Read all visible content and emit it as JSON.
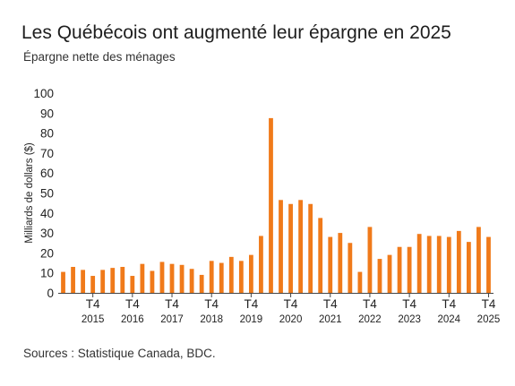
{
  "title": "Les Québécois ont augmenté leur épargne en 2025",
  "subtitle": "Épargne nette des ménages",
  "source": "Sources : Statistique Canada, BDC.",
  "colors": {
    "bar": "#f07a1a",
    "axis": "#444444",
    "text": "#222222"
  },
  "chart_data": {
    "type": "bar",
    "title": "Les Québécois ont augmenté leur épargne en 2025",
    "subtitle": "Épargne nette des ménages",
    "xlabel": "",
    "ylabel": "Milliards de dollars ($)",
    "ylim": [
      0,
      100
    ],
    "yticks": [
      0,
      10,
      20,
      30,
      40,
      50,
      60,
      70,
      80,
      90,
      100
    ],
    "grid": false,
    "quarter_tick_label": "T4",
    "years": [
      "2015",
      "2016",
      "2017",
      "2018",
      "2019",
      "2020",
      "2021",
      "2022",
      "2023",
      "2024",
      "2025"
    ],
    "values": [
      10.5,
      13,
      11.5,
      8.5,
      11.5,
      12.5,
      13,
      8.5,
      14.5,
      11,
      15.5,
      14.5,
      14,
      12,
      9,
      16,
      15,
      18,
      16,
      19,
      28.5,
      87.5,
      46.5,
      44.5,
      46.5,
      44.5,
      37.5,
      28,
      30,
      25,
      10.5,
      33,
      17,
      19,
      23,
      23,
      29.5,
      28.5,
      28.5,
      28,
      31,
      25.5,
      33,
      28
    ]
  }
}
